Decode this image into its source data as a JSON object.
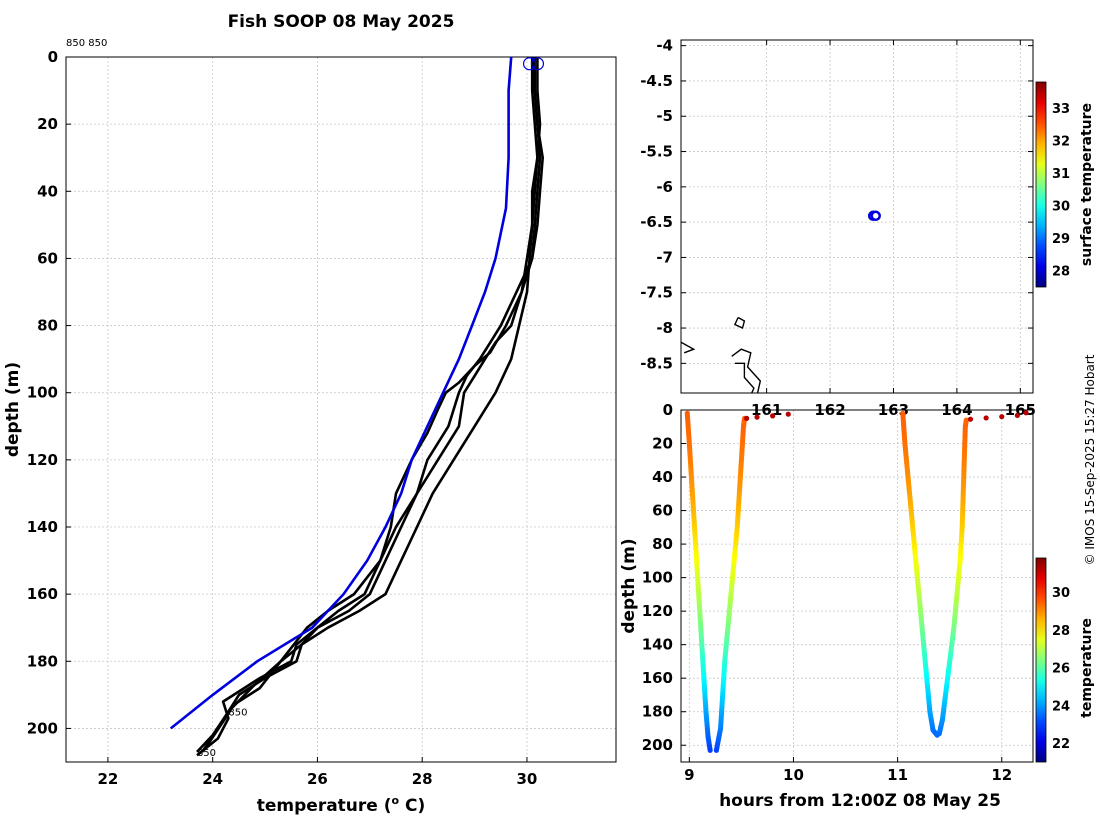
{
  "title": "Fish SOOP 08 May 2025",
  "watermark": "© IMOS 15-Sep-2025 15:27 Hobart",
  "chart_data": [
    {
      "type": "line",
      "panel": "profile",
      "header_note": "850 850",
      "xlabel": "temperature (",
      "xlabel_sup": "o",
      "xlabel_tail": " C)",
      "ylabel": "depth (m)",
      "xlim": [
        21.2,
        31.7
      ],
      "ylim": [
        210,
        0
      ],
      "y_reversed": true,
      "grid": true,
      "xticks": [
        22,
        24,
        26,
        28,
        30
      ],
      "yticks": [
        0,
        20,
        40,
        60,
        80,
        100,
        120,
        140,
        160,
        180,
        200
      ],
      "reference_profile": {
        "color": "#0000dd",
        "points": [
          [
            29.7,
            0
          ],
          [
            29.65,
            10
          ],
          [
            29.65,
            30
          ],
          [
            29.6,
            45
          ],
          [
            29.4,
            60
          ],
          [
            29.2,
            70
          ],
          [
            28.95,
            80
          ],
          [
            28.7,
            90
          ],
          [
            28.4,
            100
          ],
          [
            28.1,
            110
          ],
          [
            27.8,
            120
          ],
          [
            27.6,
            130
          ],
          [
            27.3,
            140
          ],
          [
            26.95,
            150
          ],
          [
            26.5,
            160
          ],
          [
            25.9,
            170
          ],
          [
            24.85,
            180
          ],
          [
            24.0,
            190
          ],
          [
            23.2,
            200
          ]
        ]
      },
      "profiles": [
        {
          "color": "#000000",
          "points": [
            [
              30.1,
              0
            ],
            [
              30.15,
              10
            ],
            [
              30.2,
              20
            ],
            [
              30.25,
              30
            ],
            [
              30.2,
              40
            ],
            [
              30.15,
              50
            ],
            [
              30.1,
              60
            ],
            [
              29.8,
              70
            ],
            [
              29.5,
              80
            ],
            [
              29.3,
              85
            ],
            [
              29.1,
              90
            ],
            [
              28.85,
              95
            ],
            [
              28.7,
              100
            ],
            [
              28.5,
              110
            ],
            [
              28.1,
              120
            ],
            [
              27.9,
              130
            ],
            [
              27.6,
              140
            ],
            [
              27.3,
              150
            ],
            [
              27.0,
              160
            ],
            [
              26.6,
              165
            ],
            [
              26.0,
              170
            ],
            [
              25.6,
              175
            ],
            [
              25.5,
              180
            ],
            [
              24.9,
              185
            ],
            [
              24.2,
              192
            ],
            [
              24.3,
              197
            ],
            [
              24.1,
              203
            ],
            [
              23.7,
              208
            ]
          ]
        },
        {
          "color": "#000000",
          "points": [
            [
              30.1,
              0
            ],
            [
              30.1,
              10
            ],
            [
              30.15,
              20
            ],
            [
              30.2,
              30
            ],
            [
              30.15,
              40
            ],
            [
              30.1,
              50
            ],
            [
              30.0,
              60
            ],
            [
              29.9,
              70
            ],
            [
              29.7,
              80
            ],
            [
              29.4,
              85
            ],
            [
              29.2,
              90
            ],
            [
              29.0,
              95
            ],
            [
              28.8,
              100
            ],
            [
              28.7,
              110
            ],
            [
              28.3,
              120
            ],
            [
              27.9,
              130
            ],
            [
              27.5,
              140
            ],
            [
              27.2,
              150
            ],
            [
              26.9,
              160
            ],
            [
              26.4,
              165
            ],
            [
              26.0,
              170
            ],
            [
              25.7,
              175
            ],
            [
              25.3,
              180
            ],
            [
              24.8,
              187
            ],
            [
              24.3,
              195
            ],
            [
              24.1,
              200
            ],
            [
              23.8,
              207
            ]
          ]
        },
        {
          "color": "#000000",
          "points": [
            [
              30.2,
              0
            ],
            [
              30.2,
              10
            ],
            [
              30.25,
              20
            ],
            [
              30.2,
              30
            ],
            [
              30.1,
              40
            ],
            [
              30.1,
              50
            ],
            [
              30.05,
              60
            ],
            [
              30.0,
              70
            ],
            [
              29.85,
              80
            ],
            [
              29.7,
              90
            ],
            [
              29.4,
              100
            ],
            [
              29.0,
              110
            ],
            [
              28.6,
              120
            ],
            [
              28.2,
              130
            ],
            [
              27.9,
              140
            ],
            [
              27.6,
              150
            ],
            [
              27.3,
              160
            ],
            [
              26.8,
              165
            ],
            [
              26.2,
              170
            ],
            [
              25.7,
              175
            ],
            [
              25.6,
              180
            ],
            [
              25.0,
              185
            ],
            [
              24.5,
              190
            ],
            [
              24.3,
              195
            ],
            [
              24.0,
              202
            ],
            [
              23.7,
              207
            ]
          ]
        },
        {
          "color": "#000000",
          "points": [
            [
              30.15,
              0
            ],
            [
              30.15,
              10
            ],
            [
              30.2,
              20
            ],
            [
              30.3,
              30
            ],
            [
              30.25,
              40
            ],
            [
              30.2,
              50
            ],
            [
              30.1,
              60
            ],
            [
              29.9,
              70
            ],
            [
              29.6,
              80
            ],
            [
              29.3,
              88
            ],
            [
              29.0,
              92
            ],
            [
              28.7,
              97
            ],
            [
              28.45,
              100
            ],
            [
              28.3,
              105
            ],
            [
              28.1,
              112
            ],
            [
              27.8,
              120
            ],
            [
              27.5,
              130
            ],
            [
              27.4,
              140
            ],
            [
              27.2,
              150
            ],
            [
              26.7,
              160
            ],
            [
              26.2,
              165
            ],
            [
              25.8,
              170
            ],
            [
              25.4,
              178
            ],
            [
              24.9,
              188
            ],
            [
              24.4,
              193
            ],
            [
              24.2,
              198
            ],
            [
              23.9,
              205
            ]
          ]
        }
      ],
      "annotations": [
        {
          "text": "850",
          "x": 24.3,
          "y": 195
        },
        {
          "text": "850",
          "x": 23.7,
          "y": 207
        }
      ],
      "markers": [
        {
          "x": 30.05,
          "y": 2,
          "color": "#0000dd"
        },
        {
          "x": 30.2,
          "y": 2,
          "color": "#0000dd"
        }
      ]
    },
    {
      "type": "scatter",
      "panel": "map",
      "xlim": [
        159.65,
        165.2
      ],
      "ylim": [
        -8.92,
        -3.92
      ],
      "grid": true,
      "xticks": [
        161,
        162,
        163,
        164,
        165
      ],
      "xtick_labels": [
        "161",
        "162",
        "163",
        "164",
        "165"
      ],
      "yticks": [
        -4,
        -4.5,
        -5,
        -5.5,
        -6,
        -6.5,
        -7,
        -7.5,
        -8,
        -8.5
      ],
      "yticks_display": [
        "-4",
        "-4.5",
        "-5",
        "-5.5",
        "-6",
        "-6.5",
        "-7",
        "-7.5",
        "-8",
        "-8.5"
      ],
      "points": [
        {
          "lon": 162.68,
          "lat": -6.41,
          "color": "#0000dd"
        },
        {
          "lon": 162.72,
          "lat": -6.41,
          "color": "#0000dd"
        }
      ],
      "coastlines": [
        [
          [
            160.55,
            -7.85
          ],
          [
            160.65,
            -7.9
          ],
          [
            160.62,
            -8.0
          ],
          [
            160.5,
            -7.95
          ],
          [
            160.55,
            -7.85
          ]
        ],
        [
          [
            159.65,
            -8.2
          ],
          [
            159.85,
            -8.3
          ],
          [
            159.7,
            -8.35
          ]
        ],
        [
          [
            160.45,
            -8.4
          ],
          [
            160.6,
            -8.3
          ],
          [
            160.75,
            -8.35
          ],
          [
            160.7,
            -8.55
          ],
          [
            160.9,
            -8.75
          ],
          [
            160.85,
            -8.95
          ]
        ],
        [
          [
            160.5,
            -8.5
          ],
          [
            160.65,
            -8.5
          ],
          [
            160.65,
            -8.7
          ],
          [
            160.8,
            -8.85
          ],
          [
            160.75,
            -8.95
          ]
        ]
      ],
      "colorbar": {
        "label": "surface temperature",
        "range": [
          27.5,
          33.8
        ],
        "ticks": [
          28,
          29,
          30,
          31,
          32,
          33
        ]
      }
    },
    {
      "type": "scatter",
      "panel": "time-depth",
      "xlabel": "hours from 12:00Z 08 May 25",
      "ylabel": "depth (m)",
      "xlim": [
        8.92,
        12.3
      ],
      "ylim": [
        210,
        0
      ],
      "y_reversed": true,
      "grid": true,
      "xticks": [
        9,
        10,
        11,
        12
      ],
      "yticks": [
        0,
        20,
        40,
        60,
        80,
        100,
        120,
        140,
        160,
        180,
        200
      ],
      "color_range": [
        21,
        31.8
      ],
      "dives": [
        {
          "down_pts": [
            [
              8.98,
              2
            ],
            [
              9.0,
              20
            ],
            [
              9.02,
              40
            ],
            [
              9.04,
              60
            ],
            [
              9.06,
              80
            ],
            [
              9.08,
              100
            ],
            [
              9.1,
              120
            ],
            [
              9.12,
              140
            ],
            [
              9.14,
              160
            ],
            [
              9.16,
              180
            ],
            [
              9.18,
              195
            ],
            [
              9.2,
              203
            ]
          ],
          "up_pts": [
            [
              9.26,
              203
            ],
            [
              9.3,
              190
            ],
            [
              9.32,
              170
            ],
            [
              9.34,
              150
            ],
            [
              9.37,
              130
            ],
            [
              9.4,
              110
            ],
            [
              9.43,
              90
            ],
            [
              9.46,
              70
            ],
            [
              9.48,
              50
            ],
            [
              9.5,
              30
            ],
            [
              9.52,
              10
            ],
            [
              9.53,
              5
            ]
          ],
          "surface": [
            [
              9.55,
              5
            ],
            [
              9.6,
              4.5
            ],
            [
              9.7,
              4
            ],
            [
              9.8,
              3.5
            ],
            [
              9.9,
              3
            ],
            [
              10.0,
              2
            ]
          ],
          "surface_color_value": 31.2
        },
        {
          "down_pts": [
            [
              11.05,
              2
            ],
            [
              11.07,
              20
            ],
            [
              11.1,
              40
            ],
            [
              11.13,
              60
            ],
            [
              11.16,
              80
            ],
            [
              11.19,
              100
            ],
            [
              11.22,
              120
            ],
            [
              11.25,
              140
            ],
            [
              11.28,
              160
            ],
            [
              11.31,
              180
            ],
            [
              11.34,
              191
            ],
            [
              11.38,
              194
            ]
          ],
          "up_pts": [
            [
              11.4,
              193
            ],
            [
              11.43,
              185
            ],
            [
              11.46,
              170
            ],
            [
              11.5,
              150
            ],
            [
              11.54,
              130
            ],
            [
              11.57,
              110
            ],
            [
              11.6,
              90
            ],
            [
              11.62,
              70
            ],
            [
              11.63,
              50
            ],
            [
              11.64,
              30
            ],
            [
              11.65,
              10
            ],
            [
              11.66,
              6
            ]
          ],
          "surface": [
            [
              11.7,
              5.5
            ],
            [
              11.8,
              5
            ],
            [
              11.9,
              4.5
            ],
            [
              12.0,
              4
            ],
            [
              12.1,
              3.5
            ],
            [
              12.2,
              3
            ],
            [
              12.25,
              1
            ]
          ],
          "surface_color_value": 31.2
        }
      ],
      "colorbar": {
        "label": "temperature",
        "range": [
          21,
          31.8
        ],
        "ticks": [
          22,
          24,
          26,
          28,
          30
        ]
      }
    }
  ]
}
